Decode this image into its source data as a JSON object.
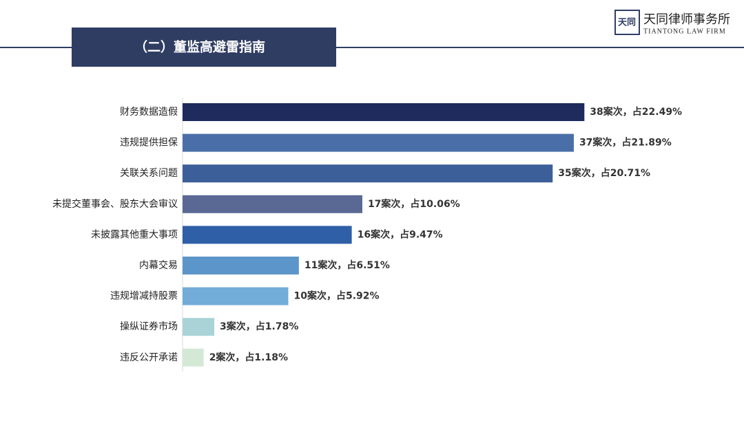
{
  "header": {
    "section_title": "（二）董监高避雷指南",
    "firm_name": "天同律师事务所",
    "firm_name_en": "TIANTONG LAW FIRM",
    "logo_text": "天同"
  },
  "chart_data": {
    "type": "bar",
    "orientation": "horizontal",
    "categories": [
      "财务数据造假",
      "违规提供担保",
      "关联关系问题",
      "未提交董事会、股东大会审议",
      "未披露其他重大事项",
      "内幕交易",
      "违规增减持股票",
      "操纵证券市场",
      "违反公开承诺"
    ],
    "values": [
      38,
      37,
      35,
      17,
      16,
      11,
      10,
      3,
      2
    ],
    "value_labels": [
      "38案次，占22.49%",
      "37案次，占21.89%",
      "35案次，占20.71%",
      "17案次，占10.06%",
      "16案次，占9.47%",
      "11案次，占6.51%",
      "10案次，占5.92%",
      "3案次，占1.78%",
      "2案次，占1.18%"
    ],
    "colors": [
      "#1f2b5c",
      "#4a6fa8",
      "#3d5f99",
      "#5a6894",
      "#2f5fa6",
      "#5c95c9",
      "#72acd8",
      "#a9d3d6",
      "#d3e9d6"
    ]
  }
}
